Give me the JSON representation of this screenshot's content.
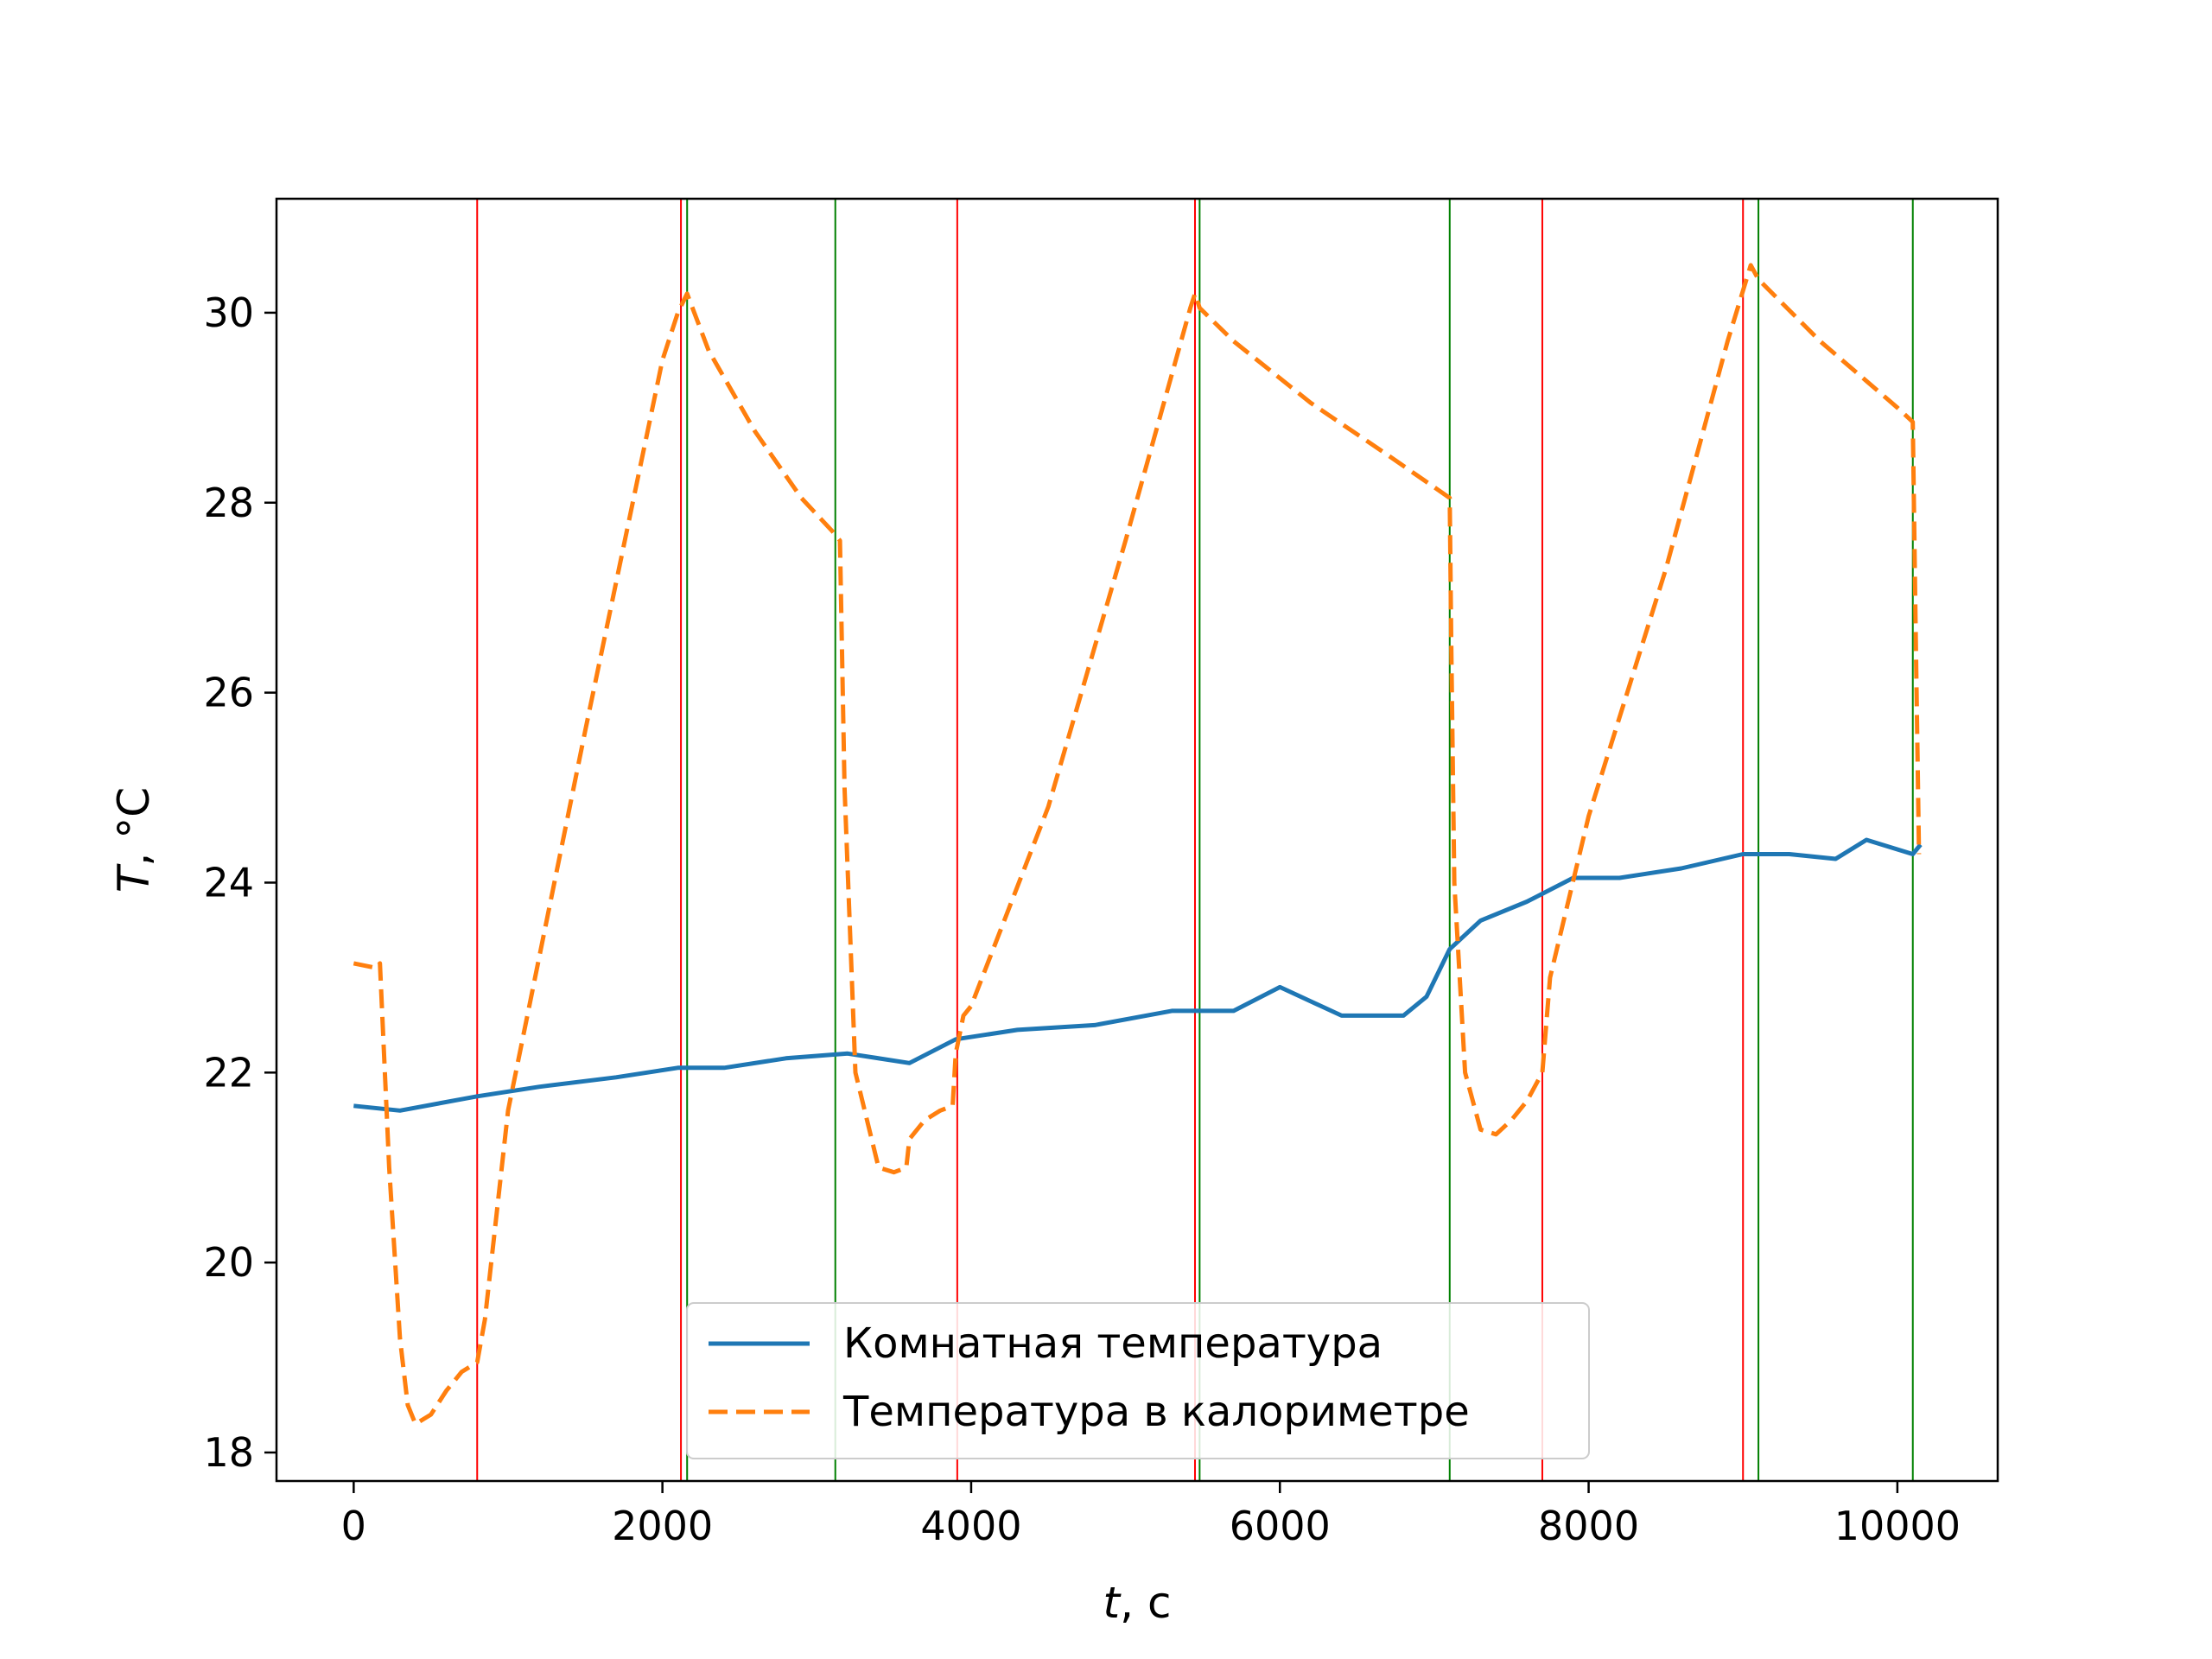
{
  "chart_data": {
    "type": "line",
    "title": "",
    "xlabel": {
      "var": "t",
      "unit": ", с"
    },
    "ylabel": {
      "var": "T",
      "unit": ", °C"
    },
    "xlim": [
      -500,
      10650
    ],
    "ylim": [
      17.7,
      31.2
    ],
    "xticks": [
      0,
      2000,
      4000,
      6000,
      8000,
      10000
    ],
    "yticks": [
      18,
      20,
      22,
      24,
      26,
      28,
      30
    ],
    "grid": false,
    "legend": {
      "placement": "bottom-center"
    },
    "vlines": {
      "red": {
        "color": "#ff0000",
        "x": [
          800,
          2120,
          3910,
          5450,
          7700,
          9000
        ]
      },
      "green": {
        "color": "#008000",
        "x": [
          2160,
          3120,
          5480,
          7100,
          9100,
          10100
        ]
      }
    },
    "series": [
      {
        "name": "Комнатная температура",
        "color": "#1f77b4",
        "style": "solid",
        "x": [
          0,
          300,
          800,
          1200,
          1700,
          2100,
          2400,
          2800,
          3200,
          3600,
          3900,
          4300,
          4800,
          5300,
          5700,
          6000,
          6400,
          6800,
          6950,
          7100,
          7300,
          7600,
          7900,
          8200,
          8600,
          9000,
          9300,
          9600,
          9800,
          10100,
          10150
        ],
        "y": [
          21.65,
          21.6,
          21.75,
          21.85,
          21.95,
          22.05,
          22.05,
          22.15,
          22.2,
          22.1,
          22.35,
          22.45,
          22.5,
          22.65,
          22.65,
          22.9,
          22.6,
          22.6,
          22.8,
          23.3,
          23.6,
          23.8,
          24.05,
          24.05,
          24.15,
          24.3,
          24.3,
          24.25,
          24.45,
          24.3,
          24.4
        ]
      },
      {
        "name": "Температура в калориметре",
        "color": "#ff7f0e",
        "style": "dashed",
        "x": [
          0,
          150,
          170,
          230,
          300,
          350,
          400,
          500,
          600,
          700,
          800,
          850,
          1000,
          1500,
          2000,
          2100,
          2160,
          2300,
          2600,
          2900,
          3100,
          3150,
          3180,
          3250,
          3400,
          3500,
          3580,
          3600,
          3700,
          3800,
          3880,
          3900,
          3950,
          4000,
          4500,
          5000,
          5420,
          5450,
          5480,
          5700,
          6200,
          6700,
          7100,
          7110,
          7130,
          7200,
          7300,
          7400,
          7500,
          7600,
          7700,
          7750,
          8000,
          8500,
          8900,
          9050,
          9100,
          9500,
          10000,
          10100,
          10120,
          10140
        ],
        "y": [
          23.15,
          23.1,
          23.15,
          21.0,
          19.2,
          18.5,
          18.3,
          18.4,
          18.65,
          18.85,
          18.95,
          19.4,
          21.6,
          25.6,
          29.5,
          30.0,
          30.2,
          29.6,
          28.75,
          28.05,
          27.7,
          27.6,
          25.0,
          22.0,
          21.0,
          20.95,
          21.0,
          21.3,
          21.5,
          21.6,
          21.65,
          22.2,
          22.6,
          22.7,
          24.8,
          27.6,
          30.05,
          30.2,
          30.05,
          29.7,
          29.05,
          28.5,
          28.05,
          26.5,
          24.0,
          22.0,
          21.4,
          21.35,
          21.5,
          21.7,
          22.0,
          23.0,
          24.7,
          27.3,
          29.7,
          30.5,
          30.35,
          29.7,
          29.0,
          28.85,
          26.5,
          24.3
        ]
      }
    ]
  }
}
